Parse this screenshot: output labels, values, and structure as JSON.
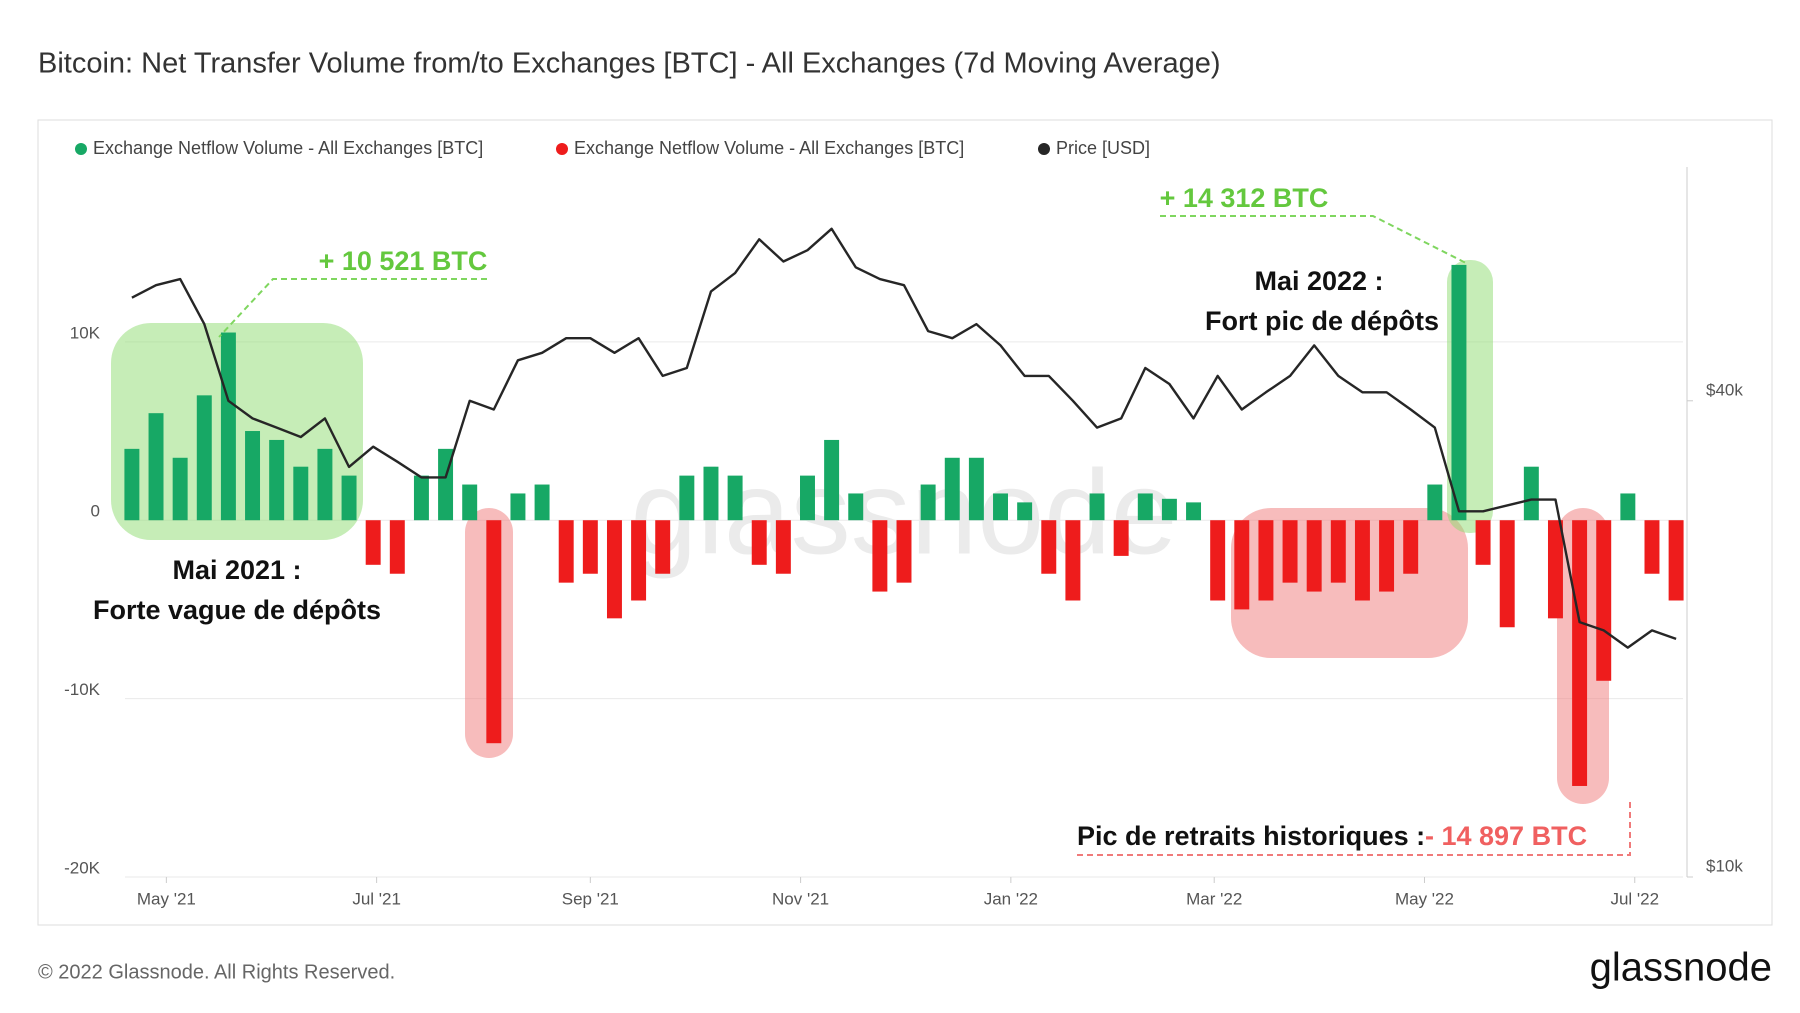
{
  "chart_data": {
    "type": "bar",
    "title": "Bitcoin: Net Transfer Volume from/to Exchanges [BTC] - All Exchanges (7d Moving Average)",
    "x": [
      "2021-04-21",
      "2021-04-28",
      "2021-05-05",
      "2021-05-12",
      "2021-05-19",
      "2021-05-26",
      "2021-06-02",
      "2021-06-09",
      "2021-06-16",
      "2021-06-23",
      "2021-06-30",
      "2021-07-07",
      "2021-07-14",
      "2021-07-21",
      "2021-07-28",
      "2021-08-04",
      "2021-08-11",
      "2021-08-18",
      "2021-08-25",
      "2021-09-01",
      "2021-09-08",
      "2021-09-15",
      "2021-09-22",
      "2021-09-29",
      "2021-10-06",
      "2021-10-13",
      "2021-10-20",
      "2021-10-27",
      "2021-11-03",
      "2021-11-10",
      "2021-11-17",
      "2021-11-24",
      "2021-12-01",
      "2021-12-08",
      "2021-12-15",
      "2021-12-22",
      "2021-12-29",
      "2022-01-05",
      "2022-01-12",
      "2022-01-19",
      "2022-01-26",
      "2022-02-02",
      "2022-02-09",
      "2022-02-16",
      "2022-02-23",
      "2022-03-02",
      "2022-03-09",
      "2022-03-16",
      "2022-03-23",
      "2022-03-30",
      "2022-04-06",
      "2022-04-13",
      "2022-04-20",
      "2022-04-27",
      "2022-05-04",
      "2022-05-11",
      "2022-05-18",
      "2022-05-25",
      "2022-06-01",
      "2022-06-08",
      "2022-06-15",
      "2022-06-22",
      "2022-06-29",
      "2022-07-06",
      "2022-07-13"
    ],
    "series": [
      {
        "name": "Exchange Netflow Volume - All Exchanges [BTC]",
        "color": "#17a865",
        "values": [
          4000,
          6000,
          3500,
          7000,
          10521,
          5000,
          4500,
          3000,
          4000,
          2500,
          null,
          null,
          2500,
          4000,
          2000,
          null,
          1500,
          2000,
          null,
          null,
          null,
          null,
          null,
          2500,
          3000,
          2500,
          null,
          null,
          2500,
          4500,
          1500,
          null,
          null,
          2000,
          3500,
          3500,
          1500,
          1000,
          null,
          null,
          1500,
          null,
          1500,
          1200,
          1000,
          null,
          null,
          null,
          null,
          null,
          null,
          null,
          null,
          null,
          2000,
          14312,
          null,
          null,
          3000,
          null,
          null,
          null,
          1500,
          null,
          null
        ]
      },
      {
        "name": "Exchange Netflow Volume - All Exchanges [BTC]",
        "color": "#ee1c1c",
        "values": [
          null,
          null,
          null,
          null,
          null,
          null,
          null,
          null,
          null,
          null,
          -2500,
          -3000,
          null,
          null,
          null,
          -12500,
          null,
          null,
          -3500,
          -3000,
          -5500,
          -4500,
          -3000,
          null,
          null,
          null,
          -2500,
          -3000,
          null,
          null,
          null,
          -4000,
          -3500,
          null,
          null,
          null,
          null,
          null,
          -3000,
          -4500,
          null,
          -2000,
          null,
          null,
          null,
          -4500,
          -5000,
          -4500,
          -3500,
          -4000,
          -3500,
          -4500,
          -4000,
          -3000,
          null,
          null,
          -2500,
          -6000,
          null,
          -5500,
          -14897,
          -9000,
          null,
          -3000,
          -4500
        ]
      },
      {
        "name": "Price [USD]",
        "color": "#262626",
        "axis": "y2",
        "type": "line",
        "values": [
          54000,
          56000,
          57000,
          50000,
          40000,
          38000,
          37000,
          36000,
          38000,
          33000,
          35000,
          33500,
          32000,
          32000,
          40000,
          39000,
          45000,
          46000,
          48000,
          48000,
          46000,
          48000,
          43000,
          44000,
          55000,
          58000,
          64000,
          60000,
          62000,
          66000,
          59000,
          57000,
          56000,
          49000,
          48000,
          50000,
          47000,
          43000,
          43000,
          40000,
          37000,
          38000,
          44000,
          42000,
          38000,
          43000,
          39000,
          41000,
          43000,
          47000,
          43000,
          41000,
          41000,
          39000,
          37000,
          29000,
          29000,
          29500,
          30000,
          30000,
          21000,
          20500,
          19500,
          20500,
          20000
        ]
      }
    ],
    "xlim": [
      "2021-04-19",
      "2022-07-15"
    ],
    "xticks": [
      {
        "value": "2021-05-01",
        "label": "May '21"
      },
      {
        "value": "2021-07-01",
        "label": "Jul '21"
      },
      {
        "value": "2021-09-01",
        "label": "Sep '21"
      },
      {
        "value": "2021-11-01",
        "label": "Nov '21"
      },
      {
        "value": "2022-01-01",
        "label": "Jan '22"
      },
      {
        "value": "2022-03-01",
        "label": "Mar '22"
      },
      {
        "value": "2022-05-01",
        "label": "May '22"
      },
      {
        "value": "2022-07-01",
        "label": "Jul '22"
      }
    ],
    "ylim": [
      -20000,
      19800
    ],
    "yticks": [
      {
        "value": 10000,
        "label": "10K"
      },
      0,
      {
        "value": -10000,
        "label": "-10K"
      },
      {
        "value": -20000,
        "label": "-20K"
      }
    ],
    "y2lim": [
      10000,
      79000
    ],
    "y2scale": "log",
    "y2ticks": [
      {
        "value": 40000,
        "label": "$40k"
      },
      {
        "value": 10000,
        "label": "$10k"
      }
    ],
    "grid": true,
    "legend": "top-left",
    "watermark": "glassnode",
    "annotations": [
      "+ 10 521 BTC",
      "Mai 2021 :",
      "Forte vague de dépôts",
      "+ 14 312 BTC",
      "Mai 2022 :",
      "Fort pic de dépôts",
      "Pic de retraits historiques :",
      "- 14 897 BTC"
    ]
  },
  "footer": {
    "copyright": "© 2022 Glassnode. All Rights Reserved.",
    "logo": "glassnode"
  }
}
